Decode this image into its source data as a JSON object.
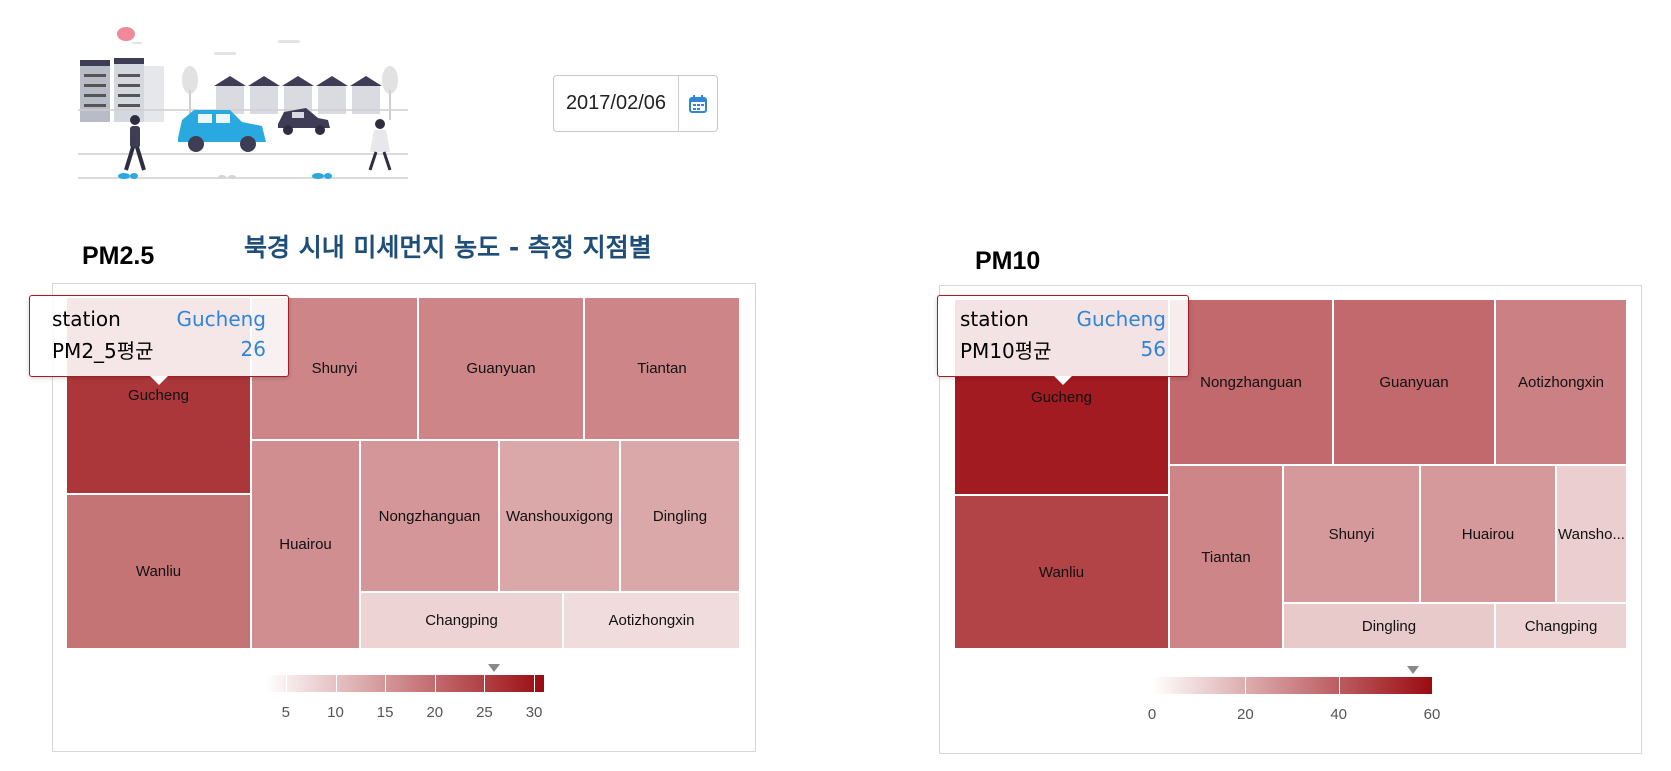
{
  "date": "2017/02/06",
  "main_title": "북경 시내 미세먼지 농도 - 측정 지점별",
  "colors": {
    "low": "#ffffff",
    "high": "#9a0b10",
    "tooltip_border": "#a31e22",
    "tooltip_value": "#2f86d6",
    "title": "#1f4e79"
  },
  "icons": {
    "date": "calendar-icon"
  },
  "pm25": {
    "title": "PM2.5",
    "tooltip": {
      "station_label": "station",
      "station_value": "Gucheng",
      "metric_label": "PM2_5평균",
      "metric_value": "26"
    },
    "legend": {
      "min": 3,
      "max": 31,
      "ticks": [
        "5",
        "10",
        "15",
        "20",
        "25",
        "30"
      ],
      "marker_value": 26
    }
  },
  "pm10": {
    "title": "PM10",
    "tooltip": {
      "station_label": "station",
      "station_value": "Gucheng",
      "metric_label": "PM10평균",
      "metric_value": "56"
    },
    "legend": {
      "min": 0,
      "max": 60,
      "ticks": [
        "0",
        "20",
        "40",
        "60"
      ],
      "marker_value": 56
    }
  },
  "chart_data": [
    {
      "type": "treemap",
      "title": "PM2.5",
      "categories": [
        "Gucheng",
        "Wanliu",
        "Shunyi",
        "Guanyuan",
        "Tiantan",
        "Huairou",
        "Nongzhanguan",
        "Wanshouxigong",
        "Dingling",
        "Changping",
        "Aotizhongxin"
      ],
      "values": [
        26,
        19,
        17,
        17,
        17,
        16,
        15,
        13,
        13,
        8,
        7
      ],
      "color_range": [
        3,
        31
      ]
    },
    {
      "type": "treemap",
      "title": "PM10",
      "categories": [
        "Gucheng",
        "Wanliu",
        "Nongzhanguan",
        "Guanyuan",
        "Aotizhongxin",
        "Tiantan",
        "Shunyi",
        "Huairou",
        "Wansho...",
        "Dingling",
        "Changping"
      ],
      "values": [
        56,
        46,
        37,
        37,
        31,
        30,
        25,
        25,
        12,
        13,
        11
      ],
      "color_range": [
        0,
        60
      ]
    }
  ]
}
